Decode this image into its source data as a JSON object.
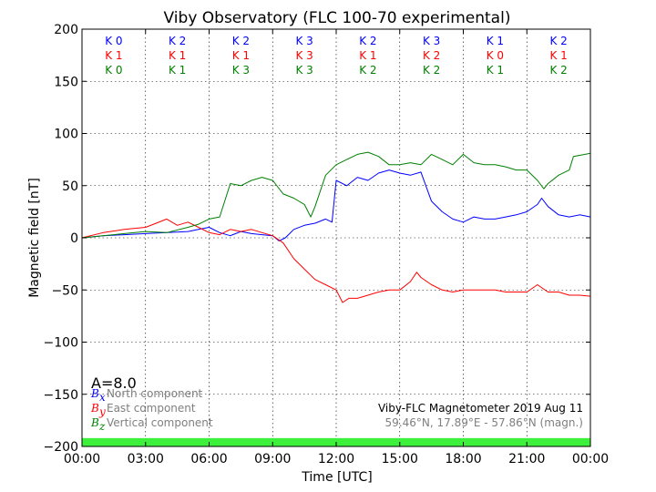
{
  "chart_data": {
    "type": "line",
    "title": "Viby Observatory (FLC 100-70 experimental)",
    "xlabel": "Time [UTC]",
    "ylabel": "Magnetic field [nT]",
    "xlim": [
      0,
      24
    ],
    "ylim": [
      -200,
      200
    ],
    "x_ticks": [
      0,
      3,
      6,
      9,
      12,
      15,
      18,
      21,
      24
    ],
    "x_tick_labels": [
      "00:00",
      "03:00",
      "06:00",
      "09:00",
      "12:00",
      "15:00",
      "18:00",
      "21:00",
      "00:00"
    ],
    "y_ticks": [
      200,
      150,
      100,
      50,
      0,
      -50,
      -100,
      -150,
      -200
    ],
    "y_tick_labels": [
      "200",
      "150",
      "100",
      "50",
      "0",
      "−50",
      "−100",
      "−150",
      "−200"
    ],
    "grid": true,
    "series": [
      {
        "name": "North component",
        "symbol": "B",
        "subscript": "x",
        "color": "#0000ff",
        "points": [
          [
            0,
            0
          ],
          [
            1,
            2
          ],
          [
            2,
            3
          ],
          [
            3,
            4
          ],
          [
            4,
            5
          ],
          [
            5,
            6
          ],
          [
            5.5,
            8
          ],
          [
            6,
            10
          ],
          [
            6.5,
            5
          ],
          [
            7,
            2
          ],
          [
            7.5,
            6
          ],
          [
            8,
            4
          ],
          [
            8.5,
            3
          ],
          [
            9,
            2
          ],
          [
            9.3,
            -3
          ],
          [
            9.6,
            0
          ],
          [
            10,
            8
          ],
          [
            10.5,
            12
          ],
          [
            11,
            14
          ],
          [
            11.5,
            18
          ],
          [
            11.8,
            15
          ],
          [
            12,
            55
          ],
          [
            12.5,
            50
          ],
          [
            13,
            58
          ],
          [
            13.5,
            55
          ],
          [
            14,
            62
          ],
          [
            14.5,
            65
          ],
          [
            15,
            62
          ],
          [
            15.5,
            60
          ],
          [
            16,
            63
          ],
          [
            16.5,
            35
          ],
          [
            17,
            25
          ],
          [
            17.5,
            18
          ],
          [
            18,
            15
          ],
          [
            18.5,
            20
          ],
          [
            19,
            18
          ],
          [
            19.5,
            18
          ],
          [
            20,
            20
          ],
          [
            20.5,
            22
          ],
          [
            21,
            25
          ],
          [
            21.5,
            32
          ],
          [
            21.7,
            38
          ],
          [
            22,
            30
          ],
          [
            22.5,
            22
          ],
          [
            23,
            20
          ],
          [
            23.5,
            22
          ],
          [
            24,
            20
          ]
        ]
      },
      {
        "name": "East component",
        "symbol": "B",
        "subscript": "y",
        "color": "#ff0000",
        "points": [
          [
            0,
            0
          ],
          [
            1,
            5
          ],
          [
            2,
            8
          ],
          [
            3,
            10
          ],
          [
            3.5,
            14
          ],
          [
            4,
            18
          ],
          [
            4.5,
            12
          ],
          [
            5,
            15
          ],
          [
            5.5,
            10
          ],
          [
            6,
            5
          ],
          [
            6.5,
            3
          ],
          [
            7,
            8
          ],
          [
            7.5,
            6
          ],
          [
            8,
            8
          ],
          [
            8.5,
            5
          ],
          [
            9,
            2
          ],
          [
            9.5,
            -5
          ],
          [
            10,
            -20
          ],
          [
            10.5,
            -30
          ],
          [
            11,
            -40
          ],
          [
            11.5,
            -45
          ],
          [
            12,
            -50
          ],
          [
            12.3,
            -62
          ],
          [
            12.6,
            -58
          ],
          [
            13,
            -58
          ],
          [
            13.5,
            -55
          ],
          [
            14,
            -52
          ],
          [
            14.5,
            -50
          ],
          [
            15,
            -50
          ],
          [
            15.5,
            -42
          ],
          [
            15.8,
            -33
          ],
          [
            16,
            -38
          ],
          [
            16.5,
            -45
          ],
          [
            17,
            -50
          ],
          [
            17.5,
            -52
          ],
          [
            18,
            -50
          ],
          [
            18.5,
            -50
          ],
          [
            19,
            -50
          ],
          [
            19.5,
            -50
          ],
          [
            20,
            -52
          ],
          [
            20.5,
            -52
          ],
          [
            21,
            -52
          ],
          [
            21.5,
            -45
          ],
          [
            22,
            -52
          ],
          [
            22.5,
            -52
          ],
          [
            23,
            -55
          ],
          [
            23.5,
            -55
          ],
          [
            24,
            -56
          ]
        ]
      },
      {
        "name": "Vertical component",
        "symbol": "B",
        "subscript": "z",
        "color": "#008000",
        "points": [
          [
            0,
            0
          ],
          [
            1,
            2
          ],
          [
            2,
            4
          ],
          [
            3,
            6
          ],
          [
            4,
            5
          ],
          [
            5,
            10
          ],
          [
            5.5,
            13
          ],
          [
            6,
            18
          ],
          [
            6.5,
            20
          ],
          [
            7,
            52
          ],
          [
            7.5,
            50
          ],
          [
            8,
            55
          ],
          [
            8.5,
            58
          ],
          [
            9,
            55
          ],
          [
            9.5,
            42
          ],
          [
            10,
            38
          ],
          [
            10.5,
            32
          ],
          [
            10.8,
            20
          ],
          [
            11,
            30
          ],
          [
            11.5,
            60
          ],
          [
            12,
            70
          ],
          [
            12.5,
            75
          ],
          [
            13,
            80
          ],
          [
            13.5,
            82
          ],
          [
            14,
            78
          ],
          [
            14.5,
            70
          ],
          [
            15,
            70
          ],
          [
            15.5,
            72
          ],
          [
            16,
            70
          ],
          [
            16.5,
            80
          ],
          [
            17,
            75
          ],
          [
            17.5,
            70
          ],
          [
            18,
            80
          ],
          [
            18.5,
            72
          ],
          [
            19,
            70
          ],
          [
            19.5,
            70
          ],
          [
            20,
            68
          ],
          [
            20.5,
            65
          ],
          [
            21,
            65
          ],
          [
            21.5,
            55
          ],
          [
            21.8,
            47
          ],
          [
            22,
            52
          ],
          [
            22.5,
            60
          ],
          [
            23,
            65
          ],
          [
            23.2,
            78
          ],
          [
            23.5,
            79
          ],
          [
            24,
            81
          ]
        ]
      }
    ],
    "k_indices": [
      [
        "K 0",
        "K 2",
        "K 2",
        "K 3",
        "K 2",
        "K 3",
        "K 1",
        "K 2"
      ],
      [
        "K 1",
        "K 1",
        "K 1",
        "K 3",
        "K 1",
        "K 2",
        "K 0",
        "K 1"
      ],
      [
        "K 0",
        "K 1",
        "K 3",
        "K 3",
        "K 2",
        "K 2",
        "K 1",
        "K 2"
      ]
    ],
    "k_colors": [
      "#0000ff",
      "#ff0000",
      "#008000"
    ],
    "a_index": "A=8.0",
    "info_line1": "Viby-FLC Magnetometer 2019 Aug 11",
    "info_line2": "59.46°N, 17.89°E - 57.86°N (magn.)",
    "status_bar_color": "#3cf03c"
  }
}
